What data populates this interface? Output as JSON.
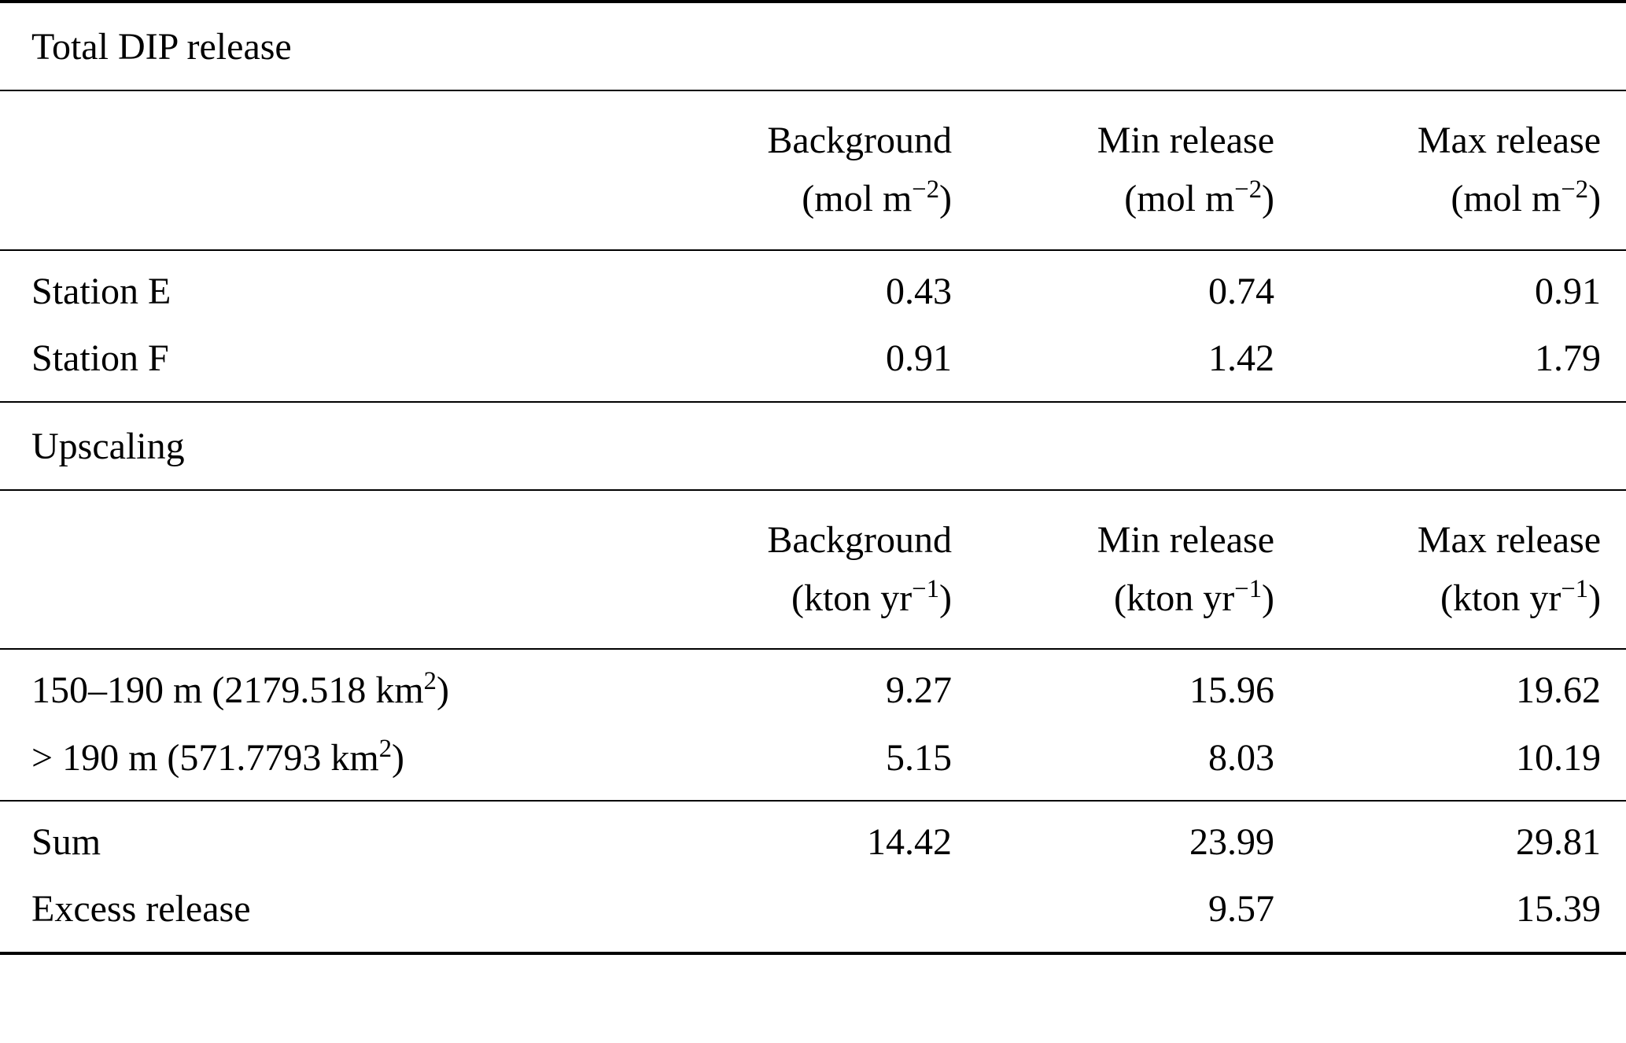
{
  "section1": {
    "title": "Total DIP release",
    "headers": [
      {
        "name": "Background",
        "unit_pre": "(mol m",
        "unit_sup": "−2",
        "unit_post": ")"
      },
      {
        "name": "Min release",
        "unit_pre": "(mol m",
        "unit_sup": "−2",
        "unit_post": ")"
      },
      {
        "name": "Max release",
        "unit_pre": "(mol m",
        "unit_sup": "−2",
        "unit_post": ")"
      }
    ],
    "rows": [
      {
        "label": "Station E",
        "v": [
          "0.43",
          "0.74",
          "0.91"
        ]
      },
      {
        "label": "Station F",
        "v": [
          "0.91",
          "1.42",
          "1.79"
        ]
      }
    ]
  },
  "section2": {
    "title": "Upscaling",
    "headers": [
      {
        "name": "Background",
        "unit_pre": "(kton yr",
        "unit_sup": "−1",
        "unit_post": ")"
      },
      {
        "name": "Min release",
        "unit_pre": "(kton yr",
        "unit_sup": "−1",
        "unit_post": ")"
      },
      {
        "name": "Max release",
        "unit_pre": "(kton yr",
        "unit_sup": "−1",
        "unit_post": ")"
      }
    ],
    "rows": [
      {
        "label_pre": "150–190 m (2179.518 km",
        "label_sup": "2",
        "label_post": ")",
        "v": [
          "9.27",
          "15.96",
          "19.62"
        ]
      },
      {
        "label_pre": "> 190 m (571.7793 km",
        "label_sup": "2",
        "label_post": ")",
        "v": [
          "5.15",
          "8.03",
          "10.19"
        ]
      }
    ],
    "summary": [
      {
        "label": "Sum",
        "v": [
          "14.42",
          "23.99",
          "29.81"
        ]
      },
      {
        "label": "Excess release",
        "v": [
          "",
          "9.57",
          "15.39"
        ]
      }
    ]
  }
}
